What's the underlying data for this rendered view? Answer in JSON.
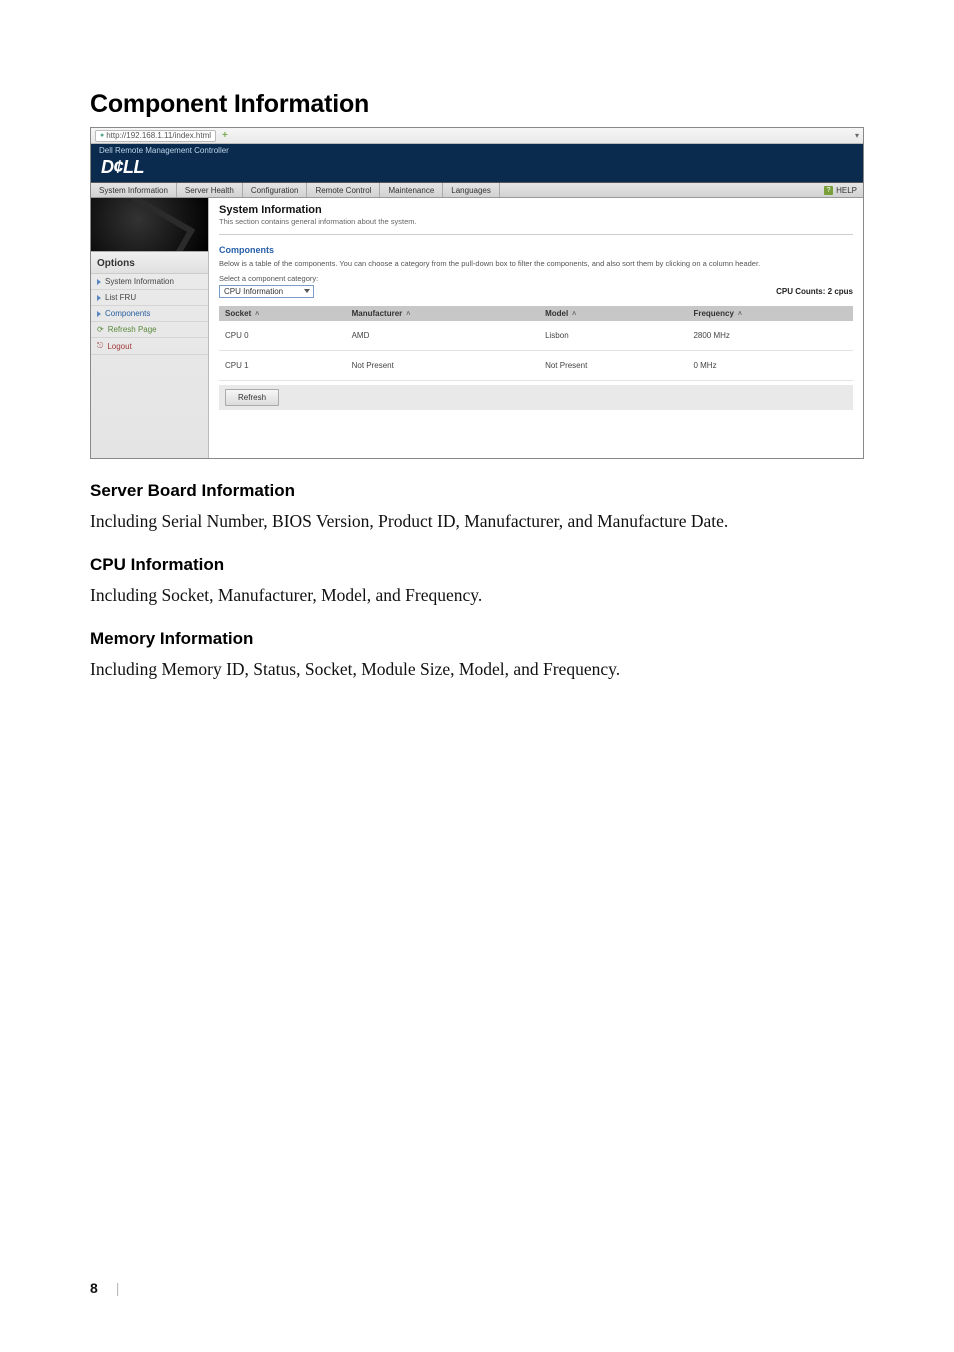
{
  "page": {
    "title": "Component Information",
    "number": "8"
  },
  "screenshot": {
    "url": "http://192.168.1.11/index.html",
    "controller_title": "Dell Remote Management Controller",
    "logo_text": "D¢LL",
    "tabs": [
      "System Information",
      "Server Health",
      "Configuration",
      "Remote Control",
      "Maintenance",
      "Languages"
    ],
    "help_label": "HELP",
    "sidebar": {
      "options_label": "Options",
      "items": [
        {
          "label": "System Information"
        },
        {
          "label": "List FRU"
        },
        {
          "label": "Components"
        }
      ],
      "refresh_label": "Refresh Page",
      "logout_label": "Logout"
    },
    "content": {
      "heading": "System Information",
      "subheading": "This section contains general information about the system.",
      "components_link": "Components",
      "desc": "Below is a table of the components. You can choose a category from the pull-down box to filter the components, and also sort them by clicking on a column header.",
      "select_label": "Select a component category:",
      "select_value": "CPU Information",
      "cpu_counts": "CPU Counts: 2 cpus",
      "table": {
        "columns": [
          "Socket",
          "Manufacturer",
          "Model",
          "Frequency"
        ],
        "rows": [
          [
            "CPU 0",
            "AMD",
            "Lisbon",
            "2800 MHz"
          ],
          [
            "CPU 1",
            "Not Present",
            "Not Present",
            "0 MHz"
          ]
        ]
      },
      "refresh_btn": "Refresh"
    }
  },
  "sections": {
    "server_board": {
      "title": "Server Board Information",
      "body": "Including Serial Number, BIOS Version, Product ID, Manufacturer, and Manufacture Date."
    },
    "cpu": {
      "title": "CPU Information",
      "body": "Including Socket, Manufacturer, Model, and Frequency."
    },
    "memory": {
      "title": "Memory Information",
      "body": "Including Memory ID, Status, Socket, Module Size, Model, and Frequency."
    }
  }
}
